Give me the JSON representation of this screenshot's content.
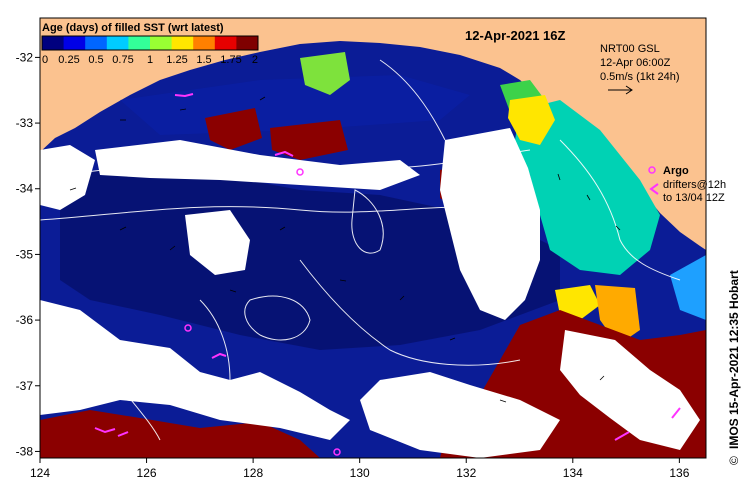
{
  "map": {
    "date_title": "12-Apr-2021 16Z",
    "colorbar": {
      "title": "Age (days) of filled SST (wrt latest)",
      "ticks": [
        "0",
        "0.25",
        "0.5",
        "0.75",
        "1",
        "1.25",
        "1.5",
        "1.75",
        "2"
      ],
      "colors": [
        "#00007f",
        "#0000e6",
        "#0066ff",
        "#00ccff",
        "#33ff99",
        "#99ff33",
        "#ffe600",
        "#ff8000",
        "#e60000",
        "#7f0000"
      ]
    },
    "current_info": {
      "line1": "NRT00 GSL",
      "line2": "12-Apr 06:00Z",
      "line3": "0.5m/s (1kt 24h)"
    },
    "legend": {
      "argo": "Argo",
      "drifters_line1": "drifters@12h",
      "drifters_line2": "to 13/04 12Z"
    },
    "credit": "IMOS 15-Apr-2021 12:35 Hobart",
    "copyright_symbol": "©",
    "x_ticks": [
      "124",
      "126",
      "128",
      "130",
      "132",
      "134",
      "136"
    ],
    "y_ticks": [
      "-32",
      "-33",
      "-34",
      "-35",
      "-36",
      "-37",
      "-38"
    ],
    "x_range": [
      124,
      136.5
    ],
    "y_range": [
      -38.1,
      -31.4
    ],
    "colors": {
      "land": "#fbc28f",
      "ocean_fresh": "#0b1c96",
      "ocean_deep": "#06106e",
      "stale": "#8b0000",
      "argo_drifter": "#ff33ff",
      "contours": "#ffffff"
    }
  }
}
